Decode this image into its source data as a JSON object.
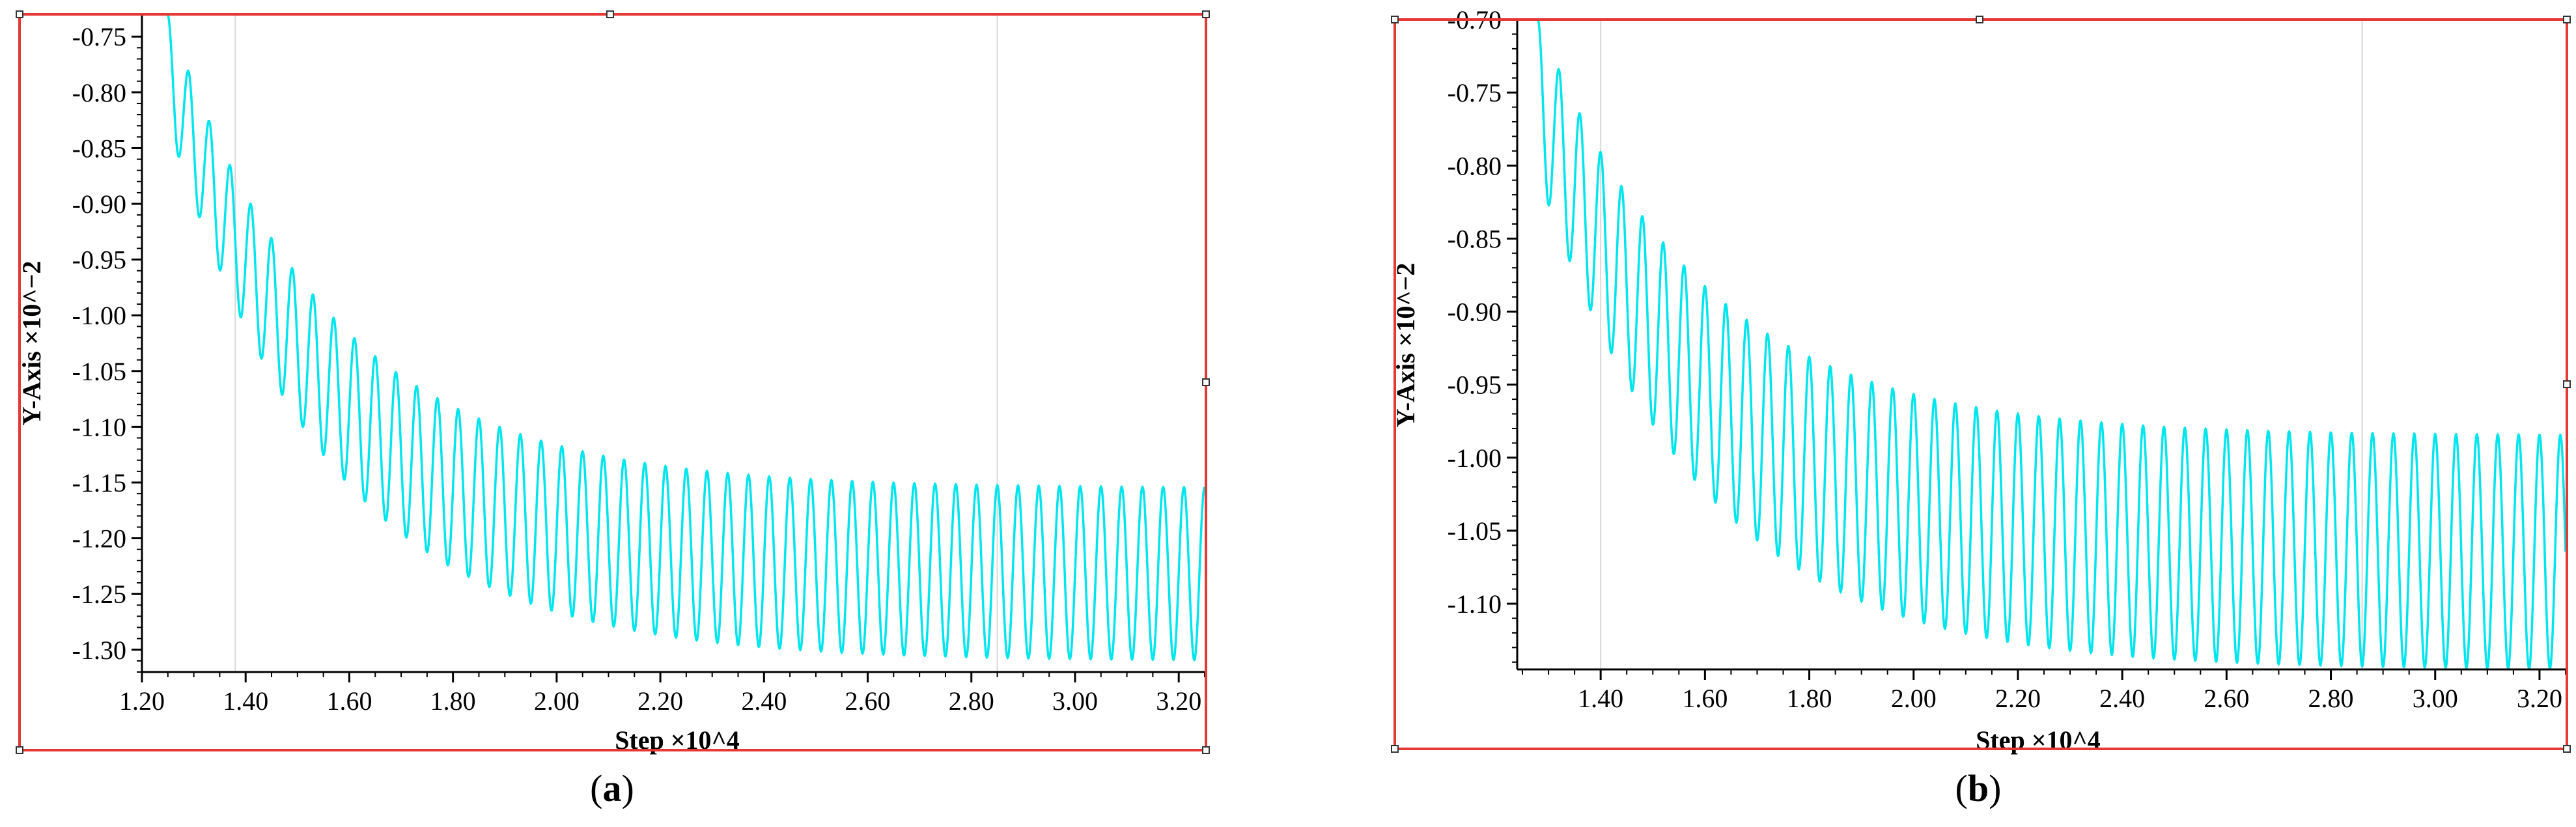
{
  "chart_data": [
    {
      "type": "line",
      "panel": "(a)",
      "caption_open": "(",
      "caption_letter": "a",
      "caption_close": ")",
      "xlabel": "Step ×10^4",
      "ylabel": "Y-Axis ×10^−2",
      "xlim": [
        1.2,
        3.25
      ],
      "ylim": [
        -1.32,
        -0.73
      ],
      "x_ticks": [
        1.2,
        1.4,
        1.6,
        1.8,
        2.0,
        2.2,
        2.4,
        2.6,
        2.8,
        3.0,
        3.2
      ],
      "x_tick_labels": [
        "1.20",
        "1.40",
        "1.60",
        "1.80",
        "2.00",
        "2.20",
        "2.40",
        "2.60",
        "2.80",
        "3.00",
        "3.20"
      ],
      "y_ticks": [
        -0.75,
        -0.8,
        -0.85,
        -0.9,
        -0.95,
        -1.0,
        -1.05,
        -1.1,
        -1.15,
        -1.2,
        -1.25,
        -1.3
      ],
      "y_tick_labels": [
        "-0.75",
        "-0.80",
        "-0.85",
        "-0.90",
        "-0.95",
        "-1.00",
        "-1.05",
        "-1.10",
        "-1.15",
        "-1.20",
        "-1.25",
        "-1.30"
      ],
      "grid_x": [
        1.38,
        2.85
      ],
      "series": [
        {
          "color": "#00e5ee",
          "description": "damped-to-steady oscillation",
          "x_start": 1.25,
          "x_end": 3.25,
          "period": 0.04,
          "upper_envelope_start": -0.73,
          "upper_envelope_end": -1.155,
          "lower_envelope_start": -0.89,
          "lower_envelope_end": -1.31,
          "settle_rate": 3.2
        }
      ]
    },
    {
      "type": "line",
      "panel": "(b)",
      "caption_open": "(",
      "caption_letter": "b",
      "caption_close": ")",
      "xlabel": "Step ×10^4",
      "ylabel": "Y-Axis ×10^−2",
      "xlim": [
        1.24,
        3.25
      ],
      "ylim": [
        -1.145,
        -0.7
      ],
      "x_ticks": [
        1.4,
        1.6,
        1.8,
        2.0,
        2.2,
        2.4,
        2.6,
        2.8,
        3.0,
        3.2
      ],
      "x_tick_labels": [
        "1.40",
        "1.60",
        "1.80",
        "2.00",
        "2.20",
        "2.40",
        "2.60",
        "2.80",
        "3.00",
        "3.20"
      ],
      "y_ticks": [
        -0.7,
        -0.75,
        -0.8,
        -0.85,
        -0.9,
        -0.95,
        -1.0,
        -1.05,
        -1.1
      ],
      "y_tick_labels": [
        "-0.70",
        "-0.75",
        "-0.80",
        "-0.85",
        "-0.90",
        "-0.95",
        "-1.00",
        "-1.05",
        "-1.10"
      ],
      "grid_x": [
        1.4,
        2.86
      ],
      "series": [
        {
          "color": "#00e5ee",
          "description": "damped-to-steady oscillation",
          "x_start": 1.28,
          "x_end": 3.25,
          "period": 0.04,
          "upper_envelope_start": -0.7,
          "upper_envelope_end": -0.985,
          "lower_envelope_start": -0.85,
          "lower_envelope_end": -1.145,
          "settle_rate": 3.2
        }
      ]
    }
  ],
  "colors": {
    "frame": "#e53935",
    "curve": "#00e5ee",
    "grid": "#d8d8d8",
    "axis": "#000000"
  }
}
